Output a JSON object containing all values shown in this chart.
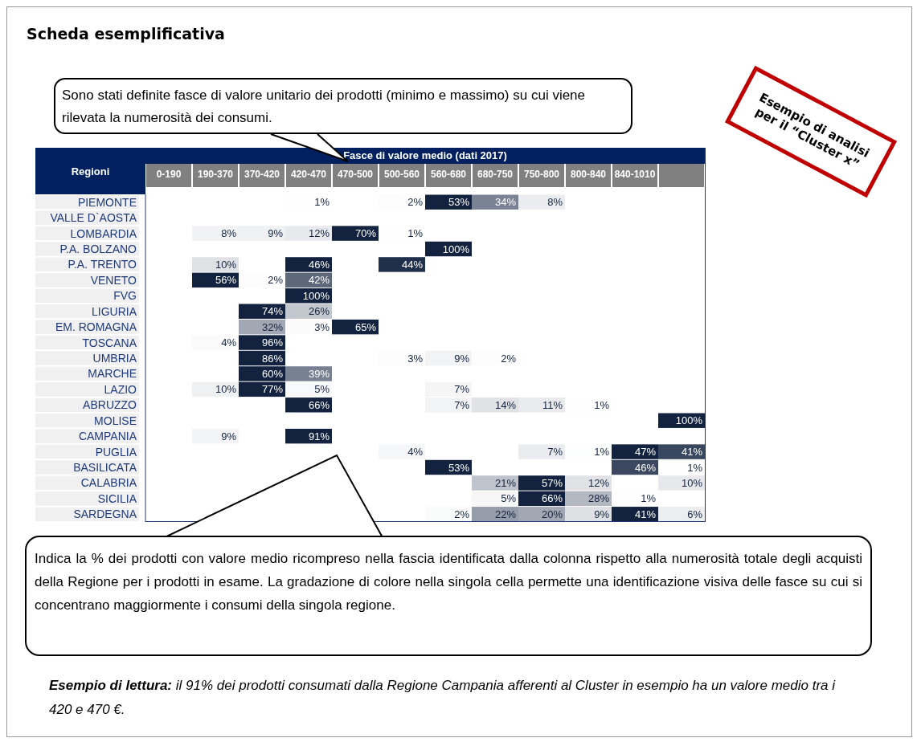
{
  "chart_data": {
    "type": "heatmap",
    "title": "Scheda esemplificativa",
    "xlabel": "Fasce di valore medio (dati 2017)",
    "ylabel": "Regioni",
    "color": "#13233f",
    "data_labels": true,
    "categories": [
      "0-190",
      "190-370",
      "370-420",
      "420-470",
      "470-500",
      "500-560",
      "560-680",
      "680-750",
      "750-800",
      "800-840",
      "840-1010",
      null
    ],
    "y_categories": [
      "PIEMONTE",
      "VALLE D`AOSTA",
      "LOMBARDIA",
      "P.A. BOLZANO",
      "P.A. TRENTO",
      "VENETO",
      "FVG",
      "LIGURIA",
      "EM. ROMAGNA",
      "TOSCANA",
      "UMBRIA",
      "MARCHE",
      "LAZIO",
      "ABRUZZO",
      "MOLISE",
      "CAMPANIA",
      "PUGLIA",
      "BASILICATA",
      "CALABRIA",
      "SICILIA",
      "SARDEGNA"
    ],
    "cells": [
      [
        null,
        null,
        null,
        1,
        null,
        2,
        53,
        34,
        8,
        null,
        null,
        null
      ],
      [
        null,
        null,
        null,
        null,
        null,
        null,
        null,
        null,
        null,
        null,
        null,
        null
      ],
      [
        null,
        8,
        9,
        12,
        70,
        1,
        null,
        null,
        null,
        null,
        null,
        null
      ],
      [
        null,
        null,
        null,
        null,
        null,
        null,
        100,
        null,
        null,
        null,
        null,
        null
      ],
      [
        null,
        10,
        null,
        46,
        null,
        44,
        null,
        null,
        null,
        null,
        null,
        null
      ],
      [
        null,
        56,
        2,
        42,
        null,
        null,
        null,
        null,
        null,
        null,
        null,
        null
      ],
      [
        null,
        null,
        null,
        100,
        null,
        null,
        null,
        null,
        null,
        null,
        null,
        null
      ],
      [
        null,
        null,
        74,
        26,
        null,
        null,
        null,
        null,
        null,
        null,
        null,
        null
      ],
      [
        null,
        null,
        32,
        3,
        65,
        null,
        null,
        null,
        null,
        null,
        null,
        null
      ],
      [
        null,
        4,
        96,
        null,
        null,
        null,
        null,
        null,
        null,
        null,
        null,
        null
      ],
      [
        null,
        null,
        86,
        null,
        null,
        3,
        9,
        2,
        null,
        null,
        null,
        null
      ],
      [
        null,
        null,
        60,
        39,
        null,
        null,
        null,
        null,
        null,
        null,
        null,
        null
      ],
      [
        null,
        10,
        77,
        5,
        null,
        null,
        7,
        null,
        null,
        null,
        null,
        null
      ],
      [
        null,
        null,
        null,
        66,
        null,
        null,
        7,
        14,
        11,
        1,
        null,
        null
      ],
      [
        null,
        null,
        null,
        null,
        null,
        null,
        null,
        null,
        null,
        null,
        null,
        100
      ],
      [
        null,
        9,
        null,
        91,
        null,
        null,
        null,
        null,
        null,
        null,
        null,
        null
      ],
      [
        null,
        null,
        null,
        null,
        null,
        4,
        null,
        null,
        7,
        1,
        47,
        41
      ],
      [
        null,
        null,
        null,
        null,
        null,
        null,
        53,
        null,
        null,
        null,
        46,
        1
      ],
      [
        null,
        null,
        null,
        null,
        null,
        null,
        null,
        21,
        57,
        12,
        null,
        10
      ],
      [
        null,
        null,
        null,
        null,
        null,
        null,
        null,
        5,
        66,
        28,
        1,
        null
      ],
      [
        null,
        null,
        null,
        null,
        null,
        null,
        2,
        22,
        20,
        9,
        41,
        6
      ]
    ],
    "cell_labels": [
      [
        null,
        null,
        null,
        "1%",
        null,
        "2%",
        "53%",
        "34%",
        "8%",
        null,
        null,
        null
      ],
      [
        null,
        null,
        null,
        null,
        null,
        null,
        null,
        null,
        null,
        null,
        null,
        null
      ],
      [
        null,
        "8%",
        "9%",
        "12%",
        "70%",
        "1%",
        null,
        null,
        null,
        null,
        null,
        null
      ],
      [
        null,
        null,
        null,
        null,
        null,
        null,
        "100%",
        null,
        null,
        null,
        null,
        null
      ],
      [
        null,
        "10%",
        null,
        "46%",
        null,
        "44%",
        null,
        null,
        null,
        null,
        null,
        null
      ],
      [
        null,
        "56%",
        "2%",
        "42%",
        null,
        null,
        null,
        null,
        null,
        null,
        null,
        null
      ],
      [
        null,
        null,
        null,
        "100%",
        null,
        null,
        null,
        null,
        null,
        null,
        null,
        null
      ],
      [
        null,
        null,
        "74%",
        "26%",
        null,
        null,
        null,
        null,
        null,
        null,
        null,
        null
      ],
      [
        null,
        null,
        "32%",
        "3%",
        "65%",
        null,
        null,
        null,
        null,
        null,
        null,
        null
      ],
      [
        null,
        "4%",
        "96%",
        null,
        null,
        null,
        null,
        null,
        null,
        null,
        null,
        null
      ],
      [
        null,
        null,
        "86%",
        null,
        null,
        "3%",
        "9%",
        "2%",
        null,
        null,
        null,
        null
      ],
      [
        null,
        null,
        "60%",
        "39%",
        null,
        null,
        null,
        null,
        null,
        null,
        null,
        null
      ],
      [
        null,
        "10%",
        "77%",
        "5%",
        null,
        null,
        "7%",
        null,
        null,
        null,
        null,
        null
      ],
      [
        null,
        null,
        null,
        "66%",
        null,
        null,
        "7%",
        "14%",
        "11%",
        "1%",
        null,
        null
      ],
      [
        null,
        null,
        null,
        null,
        null,
        null,
        null,
        null,
        null,
        null,
        null,
        "100%"
      ],
      [
        null,
        "9%",
        null,
        "91%",
        null,
        null,
        null,
        null,
        null,
        null,
        null,
        null
      ],
      [
        null,
        null,
        null,
        null,
        null,
        "4%",
        null,
        null,
        "7%",
        "1%",
        "47%",
        "41%"
      ],
      [
        null,
        null,
        null,
        null,
        null,
        null,
        "53%",
        null,
        null,
        null,
        "46%",
        "1%"
      ],
      [
        null,
        null,
        null,
        null,
        null,
        null,
        null,
        "21%",
        "57%",
        "12%",
        null,
        "10%"
      ],
      [
        null,
        null,
        null,
        null,
        null,
        null,
        null,
        "5%",
        "66%",
        "28%",
        "1%",
        null
      ],
      [
        null,
        null,
        null,
        null,
        null,
        null,
        "2%",
        "22%",
        "20%",
        "9%",
        "41%",
        "6%"
      ]
    ],
    "annotations": [
      "Sono stati definite fasce di valore unitario dei prodotti (minimo e massimo) su cui viene rilevata la numerosità dei consumi.",
      "Esempio di analisi per il “Cluster x”",
      "Indica la % dei prodotti con valore medio ricompreso nella fascia identificata dalla colonna rispetto alla numerosità totale degli acquisti della Regione per i prodotti in esame. La gradazione di colore nella singola cella permette una identificazione visiva delle fasce su cui si concentrano maggiormente i consumi della singola regione.",
      "Esempio di lettura:",
      "il 91% dei prodotti consumati dalla Regione Campania afferenti al Cluster in esempio ha un valore medio tra i 420 e 470 €."
    ]
  }
}
